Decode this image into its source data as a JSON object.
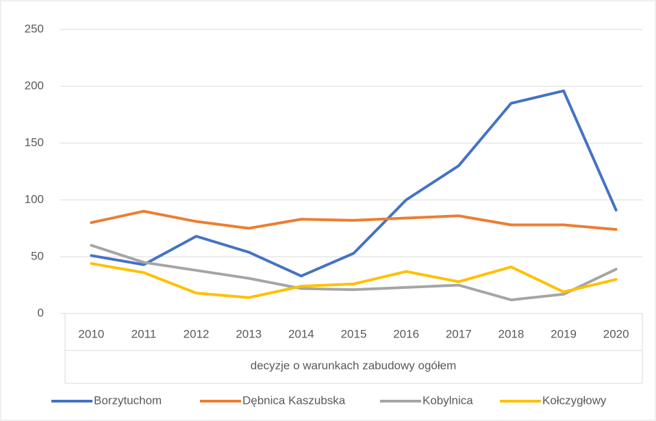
{
  "chart_data": {
    "type": "line",
    "x_label": "decyzje o warunkach zabudowy ogółem",
    "categories": [
      "2010",
      "2011",
      "2012",
      "2013",
      "2014",
      "2015",
      "2016",
      "2017",
      "2018",
      "2019",
      "2020"
    ],
    "series": [
      {
        "name": "Borzytuchom",
        "color": "#4472c4",
        "values": [
          51,
          43,
          68,
          54,
          33,
          53,
          100,
          130,
          185,
          196,
          91
        ]
      },
      {
        "name": "Dębnica Kaszubska",
        "color": "#ed7d31",
        "values": [
          80,
          90,
          81,
          75,
          83,
          82,
          84,
          86,
          78,
          78,
          74
        ]
      },
      {
        "name": "Kobylnica",
        "color": "#a5a5a5",
        "values": [
          60,
          45,
          38,
          31,
          22,
          21,
          23,
          25,
          12,
          17,
          39
        ]
      },
      {
        "name": "Kołczygłowy",
        "color": "#ffc000",
        "values": [
          44,
          36,
          18,
          14,
          24,
          26,
          37,
          28,
          41,
          19,
          30
        ]
      }
    ],
    "ylim": [
      0,
      250
    ],
    "yticks": [
      0,
      50,
      100,
      150,
      200,
      250
    ],
    "grid": true,
    "legend": "bottom"
  }
}
